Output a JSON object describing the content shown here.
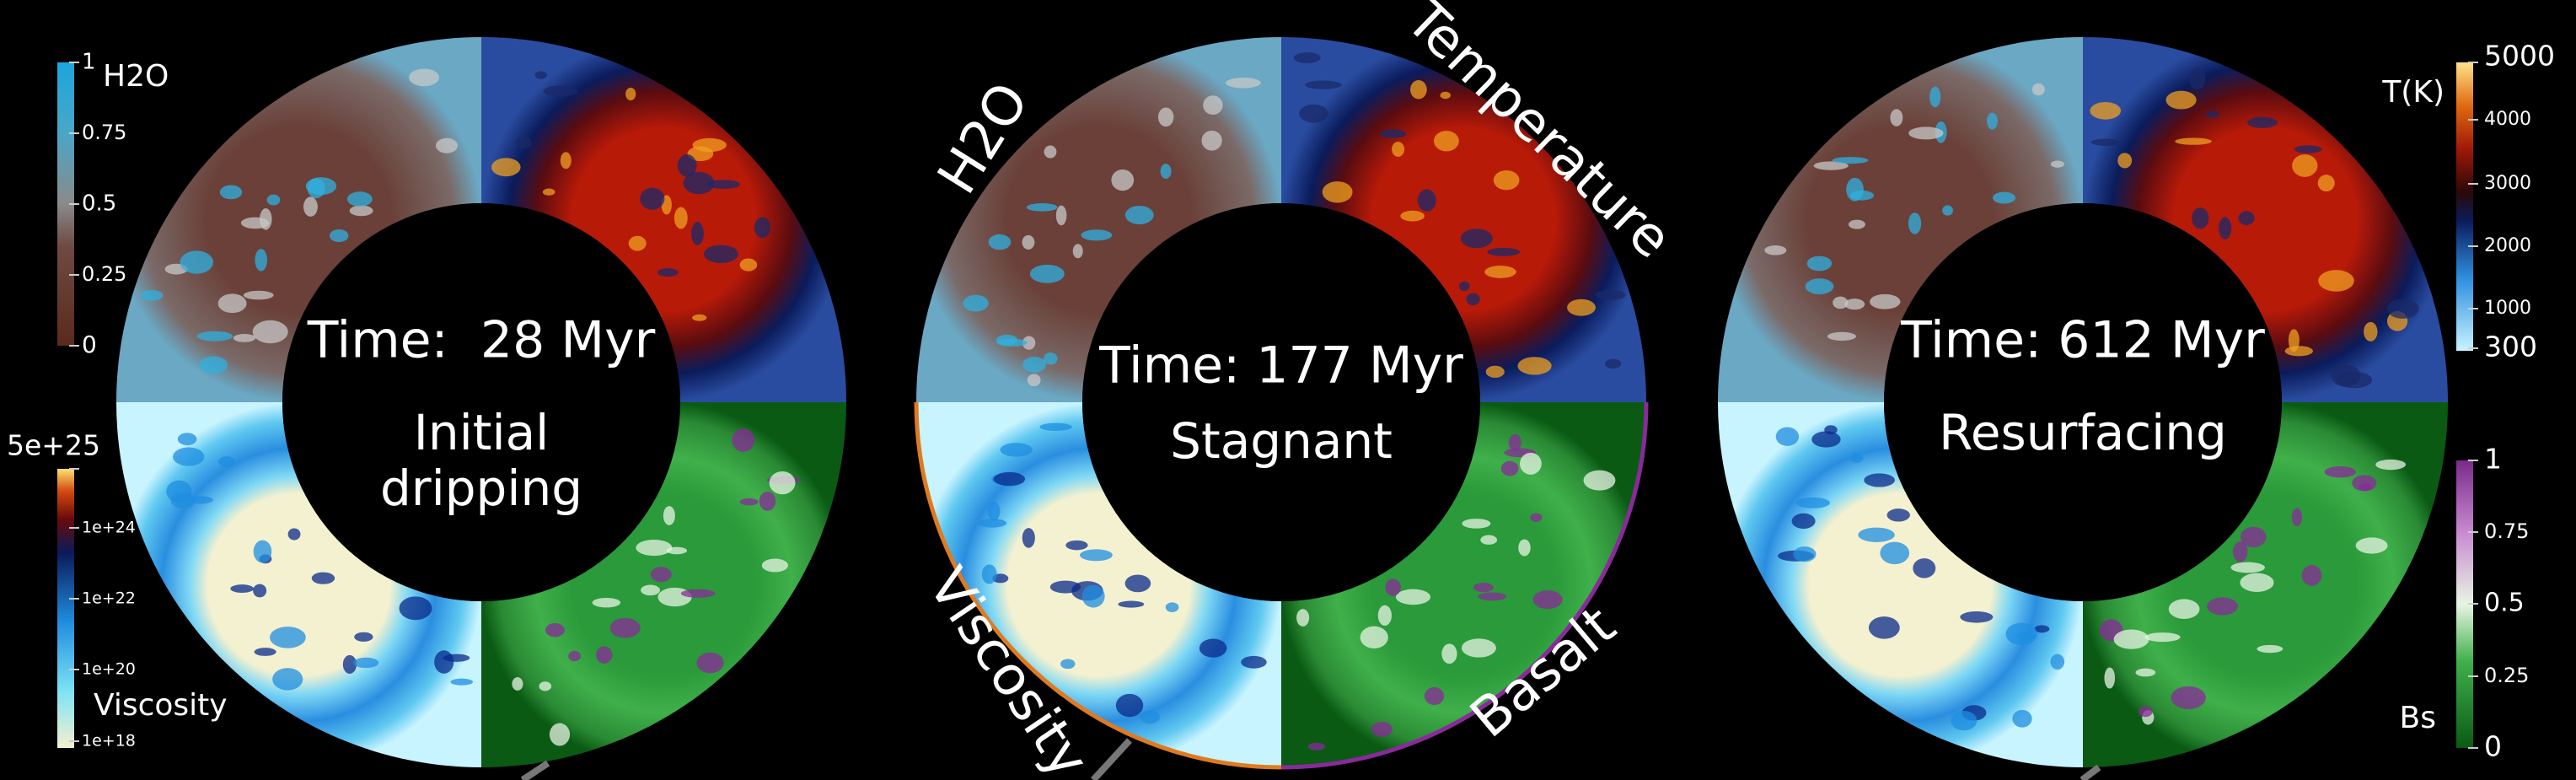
{
  "colorbars": {
    "h2o": {
      "label": "H2O",
      "ticks": [
        1,
        0.75,
        0.5,
        0.25,
        0
      ]
    },
    "viscosity": {
      "label": "Viscosity",
      "ticks": [
        "5e+25",
        "1e+24",
        "1e+22",
        "1e+20",
        "1e+18"
      ]
    },
    "temperature": {
      "label": "T(K)",
      "ticks": [
        5000,
        4000,
        3000,
        2000,
        1000,
        300
      ]
    },
    "basalt": {
      "label": "Bs",
      "ticks": [
        1,
        0.75,
        0.5,
        0.25,
        0
      ]
    }
  },
  "quadrant_labels": [
    "H2O",
    "Temperature",
    "Viscosity",
    "Basalt"
  ],
  "panels": [
    {
      "time": "Time:  28 Myr",
      "regime": [
        "Initial",
        "dripping"
      ]
    },
    {
      "time": "Time: 177 Myr",
      "regime": [
        "Stagnant"
      ]
    },
    {
      "time": "Time: 612 Myr",
      "regime": [
        "Resurfacing"
      ]
    }
  ]
}
